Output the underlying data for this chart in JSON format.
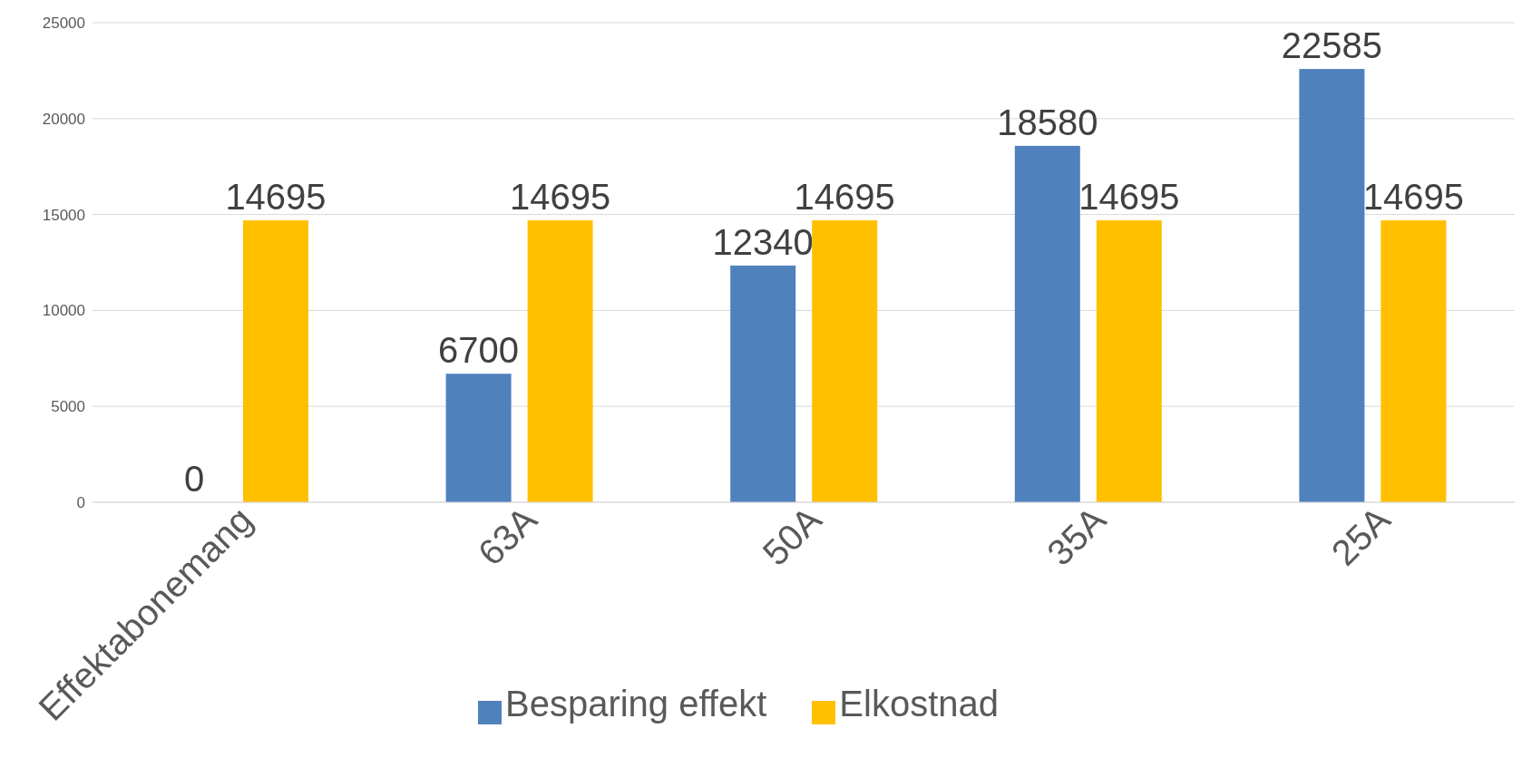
{
  "chart_data": {
    "type": "bar",
    "categories": [
      "Effektabonemang",
      "63A",
      "50A",
      "35A",
      "25A"
    ],
    "series": [
      {
        "name": "Besparing effekt",
        "color": "#4f81bd",
        "values": [
          0,
          6700,
          12340,
          18580,
          22585
        ]
      },
      {
        "name": "Elkostnad",
        "color": "#ffc000",
        "values": [
          14695,
          14695,
          14695,
          14695,
          14695
        ]
      }
    ],
    "ylim": [
      0,
      25000
    ],
    "yticks": [
      0,
      5000,
      10000,
      15000,
      20000,
      25000
    ],
    "grid": "y",
    "legend": "bottom",
    "data_labels": true
  }
}
